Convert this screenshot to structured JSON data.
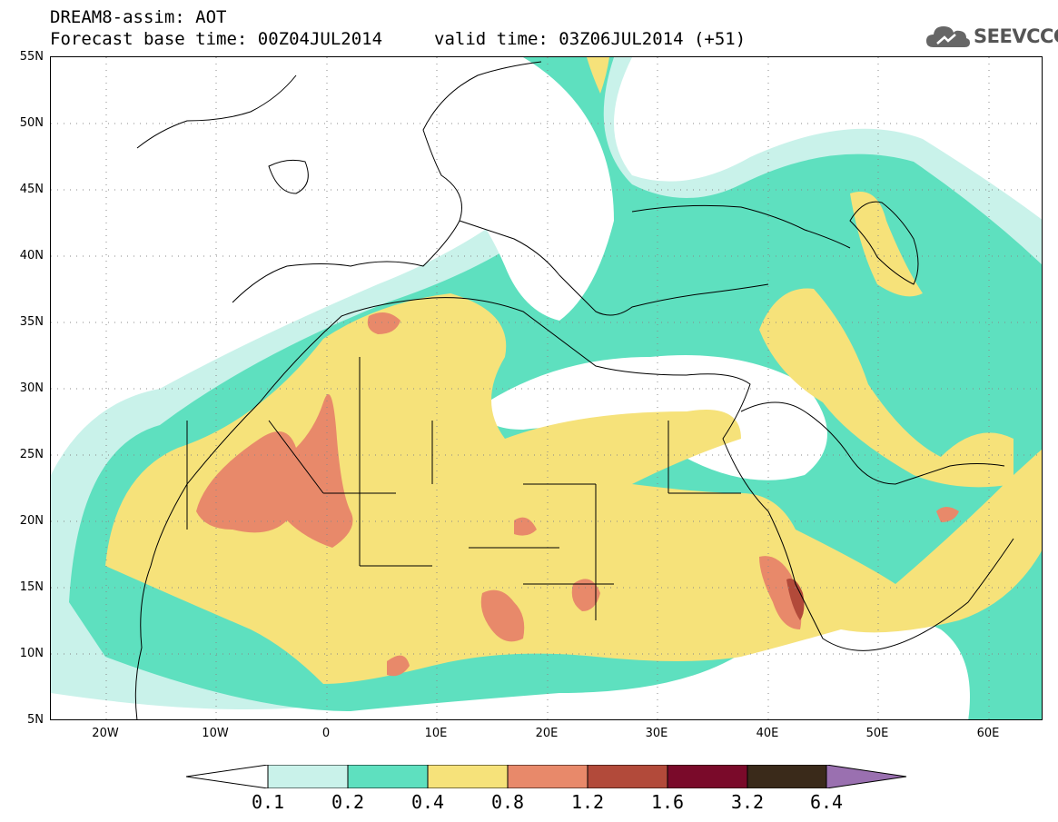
{
  "header": {
    "title": "DREAM8-assim: AOT",
    "base_time": "Forecast base time: 00Z04JUL2014",
    "valid_time": "valid time: 03Z06JUL2014 (+51)"
  },
  "logo": {
    "text": "SEEVCCC",
    "color": "#555555"
  },
  "map": {
    "lat_ticks": [
      "55N",
      "50N",
      "45N",
      "40N",
      "35N",
      "30N",
      "25N",
      "20N",
      "15N",
      "10N",
      "5N"
    ],
    "lon_ticks": [
      "20W",
      "10W",
      "0",
      "10E",
      "20E",
      "30E",
      "40E",
      "50E",
      "60E"
    ],
    "lat_range": [
      5,
      55
    ],
    "lon_range": [
      -25,
      65
    ],
    "grid": "dotted"
  },
  "legend": {
    "labels": [
      "0.1",
      "0.2",
      "0.4",
      "0.8",
      "1.2",
      "1.6",
      "3.2",
      "6.4"
    ],
    "colors": [
      "#ffffff",
      "#c9f2ea",
      "#5ee0bf",
      "#f6e27a",
      "#e8896a",
      "#b24a3a",
      "#7a0a2a",
      "#3a2a1a",
      "#9a70b0"
    ]
  }
}
